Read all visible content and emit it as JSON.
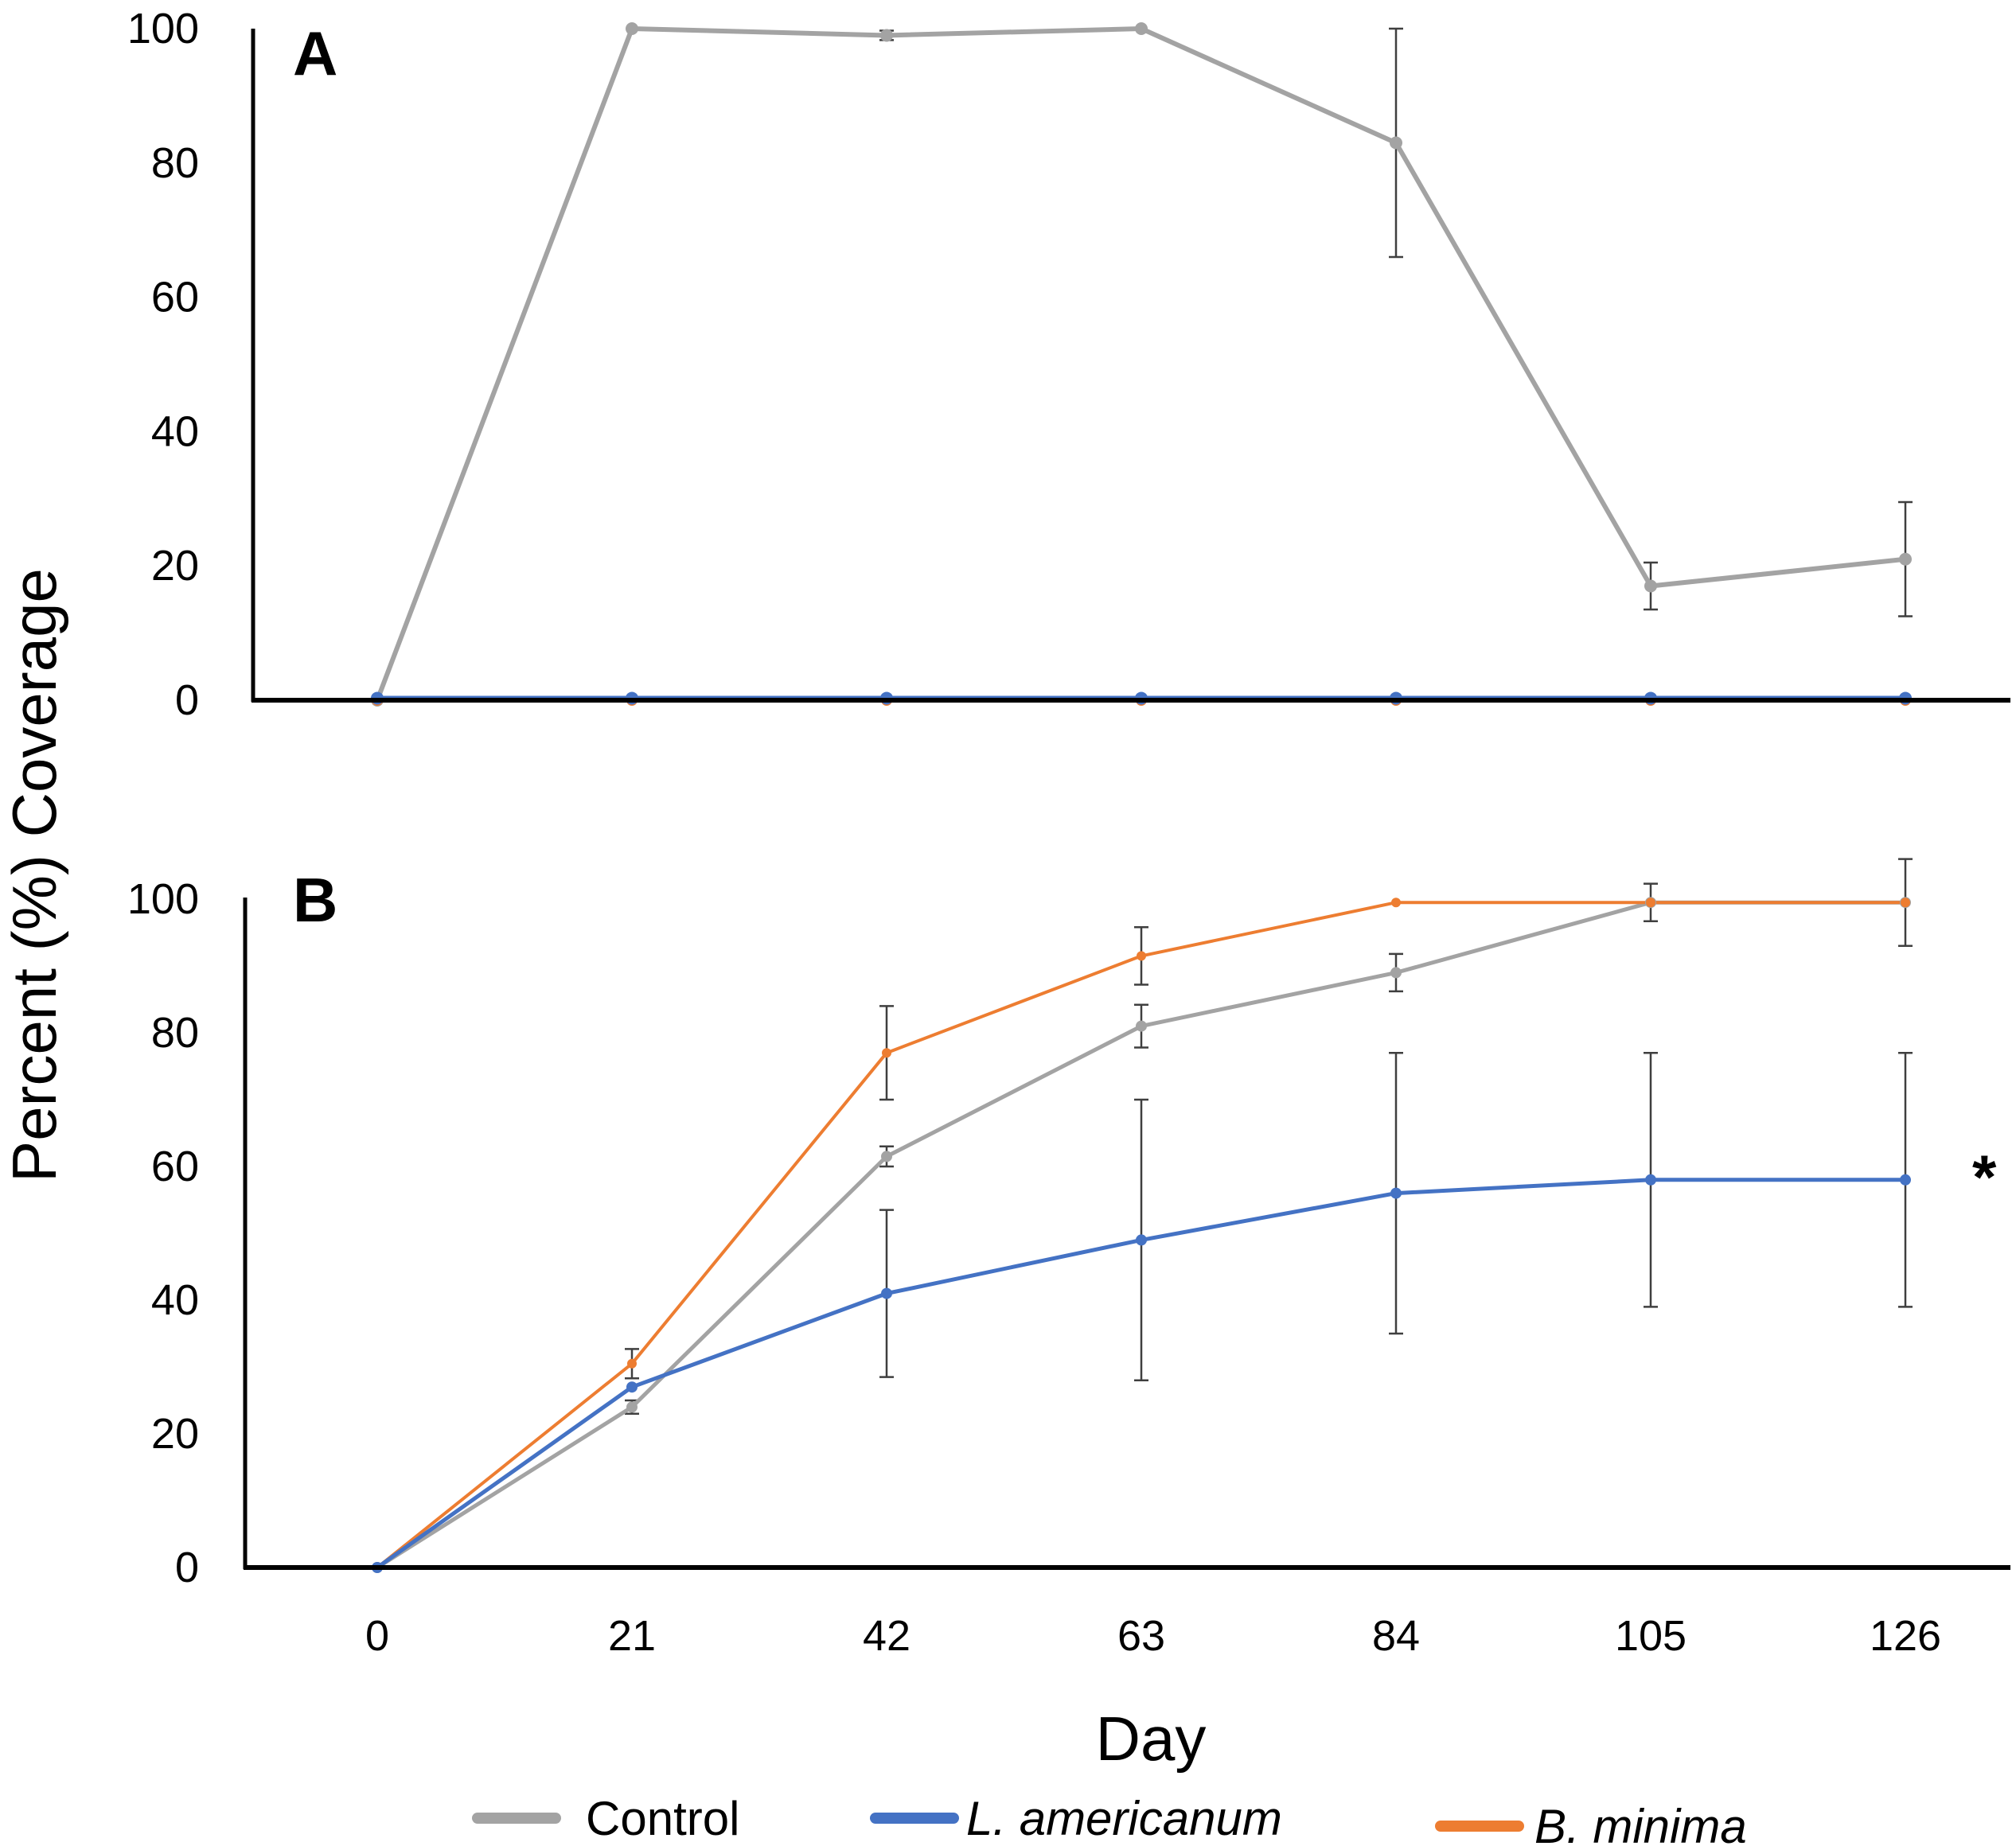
{
  "colors": {
    "control": "#a3a3a3",
    "l_americanum": "#4472c4",
    "b_minima": "#ed7d31",
    "axis": "#000000",
    "errbar": "#3f3f3f"
  },
  "ylabel": "Percent (%) Coverage",
  "xlabel": "Day",
  "legend": {
    "control": "Control",
    "l_americanum": "L. americanum",
    "b_minima": "B. minima"
  },
  "chart_data": [
    {
      "type": "line",
      "panel": "A",
      "x": [
        0,
        21,
        42,
        63,
        84,
        105,
        126
      ],
      "xticks": [
        "0",
        "21",
        "42",
        "63",
        "84",
        "105",
        "126"
      ],
      "yticks": [
        "0",
        "20",
        "40",
        "60",
        "80",
        "100"
      ],
      "ylim": [
        0,
        100
      ],
      "series": [
        {
          "key": "control",
          "name": "Control",
          "values": [
            0,
            100,
            99,
            100,
            83,
            17,
            21
          ],
          "errors": [
            0,
            0,
            0.7,
            0,
            17,
            3.5,
            8.5
          ],
          "width": 6,
          "marker": 8
        },
        {
          "key": "b_minima",
          "name": "B. minima",
          "values": [
            0,
            0,
            0,
            0,
            0,
            0,
            0
          ],
          "errors": [
            0,
            0,
            0,
            0,
            0,
            0,
            0
          ],
          "width": 4,
          "marker": 7
        },
        {
          "key": "l_americanum",
          "name": "L. americanum",
          "values": [
            0.3,
            0.3,
            0.3,
            0.3,
            0.3,
            0.3,
            0.3
          ],
          "errors": [
            0,
            0,
            0,
            0,
            0,
            0,
            0
          ],
          "width": 6,
          "marker": 8
        }
      ]
    },
    {
      "type": "line",
      "panel": "B",
      "x": [
        0,
        21,
        42,
        63,
        84,
        105,
        126
      ],
      "xticks": [
        "0",
        "21",
        "42",
        "63",
        "84",
        "105",
        "126"
      ],
      "yticks": [
        "0",
        "20",
        "40",
        "60",
        "80",
        "100"
      ],
      "ylim": [
        0,
        100
      ],
      "annotation": {
        "text": "*",
        "x": 126,
        "y": 58
      },
      "series": [
        {
          "key": "control",
          "name": "Control",
          "values": [
            0,
            24,
            61.5,
            81,
            89,
            99.5,
            99.5
          ],
          "errors": [
            0,
            1,
            1.5,
            3.2,
            2.8,
            2.8,
            0
          ],
          "width": 5,
          "marker": 7
        },
        {
          "key": "b_minima",
          "name": "B. minima",
          "values": [
            0,
            30.5,
            77,
            91.5,
            99.5,
            99.5,
            99.5
          ],
          "errors": [
            0,
            2.2,
            7,
            4.3,
            0,
            0,
            6.5
          ],
          "width": 4,
          "marker": 6
        },
        {
          "key": "l_americanum",
          "name": "L. americanum",
          "values": [
            0,
            27,
            41,
            49,
            56,
            58,
            58
          ],
          "errors": [
            0,
            0,
            12.5,
            21,
            21,
            19,
            19
          ],
          "width": 5,
          "marker": 7
        }
      ]
    }
  ]
}
